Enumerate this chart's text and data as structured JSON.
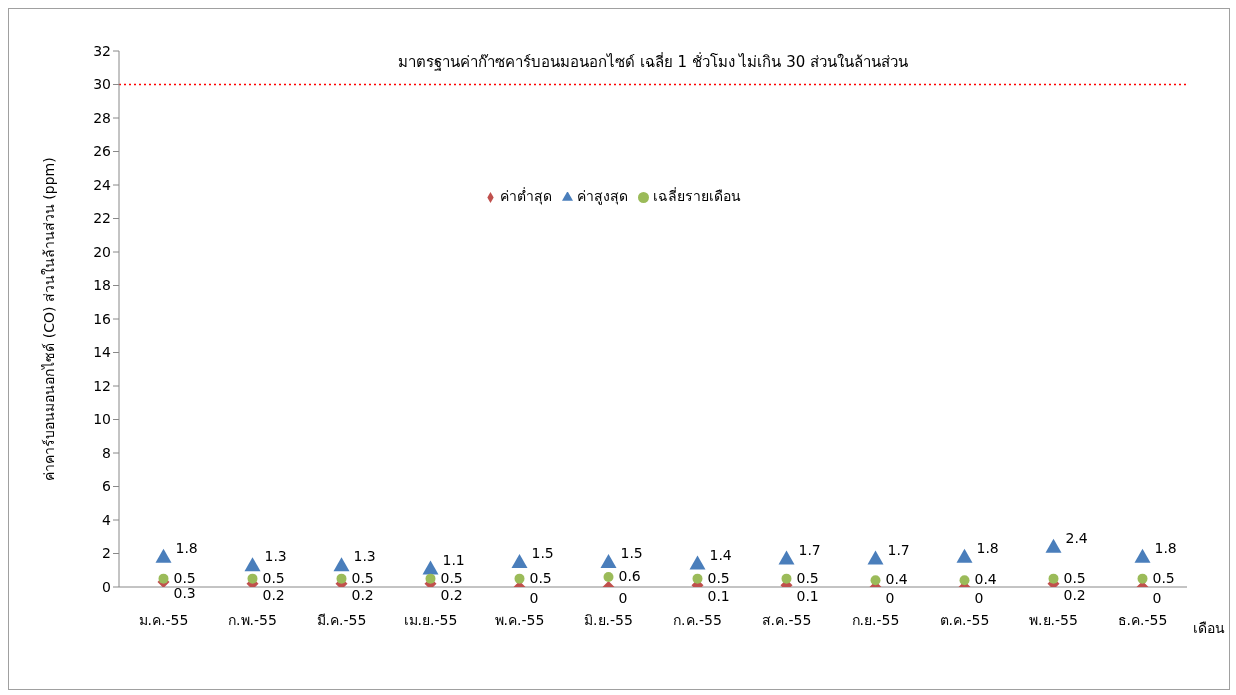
{
  "chart_data": {
    "type": "scatter",
    "ylabel": "ค่าคาร์บอนมอนอกไซด์ (CO)  ส่วนในล้านส่วน (ppm)",
    "xlabel": "เดือน",
    "categories": [
      "ม.ค.-55",
      "ก.พ.-55",
      "มี.ค.-55",
      "เม.ย.-55",
      "พ.ค.-55",
      "มิ.ย.-55",
      "ก.ค.-55",
      "ส.ค.-55",
      "ก.ย.-55",
      "ต.ค.-55",
      "พ.ย.-55",
      "ธ.ค.-55"
    ],
    "series": [
      {
        "name": "ค่าสูงสุด",
        "color": "#4a7ebb",
        "marker": "triangle",
        "values": [
          1.8,
          1.3,
          1.3,
          1.1,
          1.5,
          1.5,
          1.4,
          1.7,
          1.7,
          1.8,
          2.4,
          1.8
        ]
      },
      {
        "name": "ค่าต่ำสุด",
        "color": "#c0504d",
        "marker": "diamond",
        "values": [
          0.3,
          0.2,
          0.2,
          0.2,
          0,
          0,
          0.1,
          0.1,
          0,
          0,
          0.2,
          0
        ]
      },
      {
        "name": "เฉลี่ยรายเดือน",
        "color": "#9bbb59",
        "marker": "circle",
        "values": [
          0.5,
          0.5,
          0.5,
          0.5,
          0.5,
          0.6,
          0.5,
          0.5,
          0.4,
          0.4,
          0.5,
          0.5
        ]
      }
    ],
    "ylim": [
      0,
      32
    ],
    "yticks": [
      0,
      2,
      4,
      6,
      8,
      10,
      12,
      14,
      16,
      18,
      20,
      22,
      24,
      26,
      28,
      30,
      32
    ],
    "ref_lines": [
      {
        "axis": "y",
        "value": 30,
        "label": "มาตรฐานค่าก๊าซคาร์บอนมอนอกไซด์ เฉลี่ย 1 ชั่วโมง ไม่เกิน 30 ส่วนในล้านส่วน",
        "color": "#ff0000",
        "line_style": "dotted"
      }
    ],
    "data_labels": true,
    "grid": false,
    "legend": "top"
  }
}
